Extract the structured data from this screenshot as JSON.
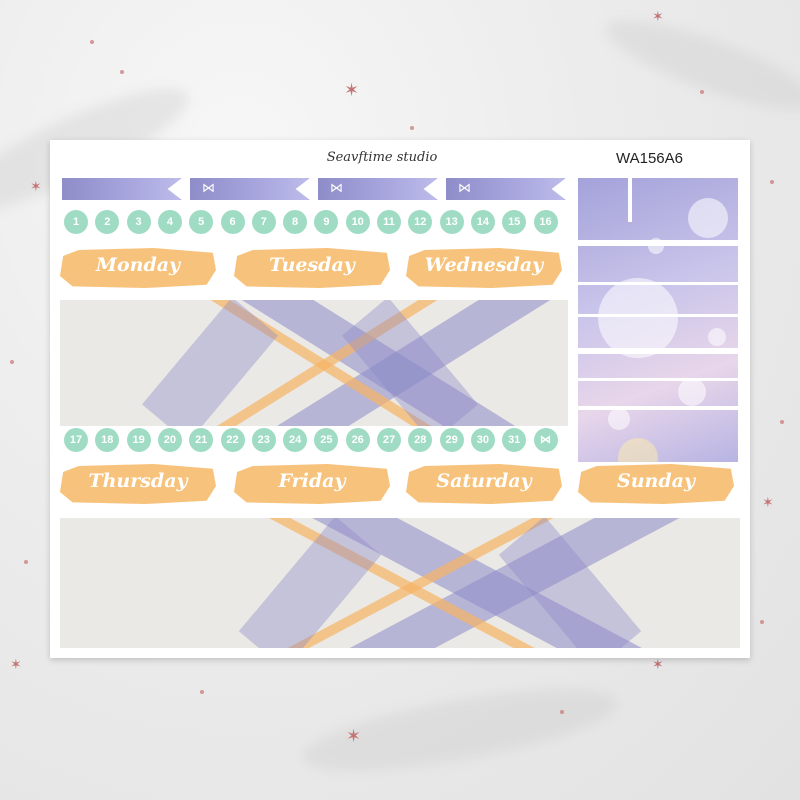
{
  "sheet": {
    "brand": "Seavftime studio",
    "code": "WA156A6"
  },
  "numbers_top": [
    "1",
    "2",
    "3",
    "4",
    "5",
    "6",
    "7",
    "8",
    "9",
    "10",
    "11",
    "12",
    "13",
    "14",
    "15",
    "16"
  ],
  "numbers_bottom": [
    "17",
    "18",
    "19",
    "20",
    "21",
    "22",
    "23",
    "24",
    "25",
    "26",
    "27",
    "28",
    "29",
    "30",
    "31"
  ],
  "end_symbol": "bow-icon",
  "days_top": [
    "Monday",
    "Tuesday",
    "Wednesday"
  ],
  "days_bottom": [
    "Thursday",
    "Friday",
    "Saturday",
    "Sunday"
  ],
  "colors": {
    "mint": "#9fdcc3",
    "peach": "#f7c27b",
    "lavender": "#8f8dc9"
  }
}
